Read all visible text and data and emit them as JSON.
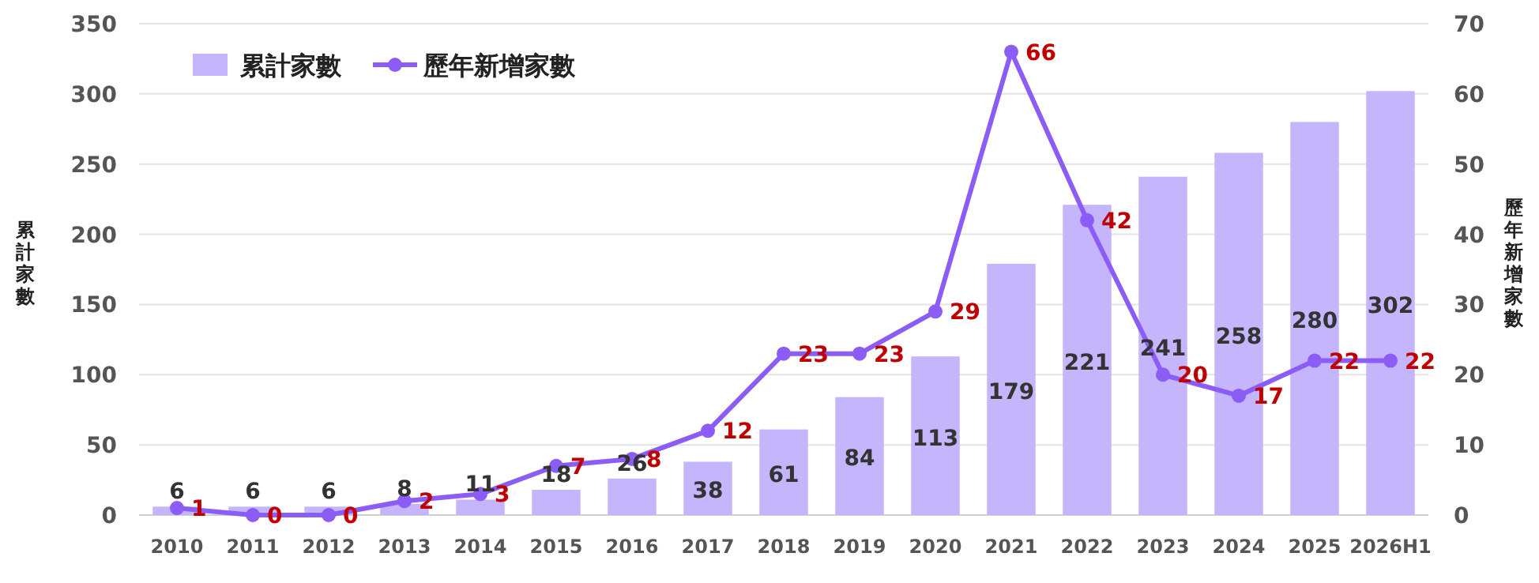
{
  "chart_data": {
    "type": "bar",
    "ylabel": "累計家數",
    "y2label": "歷年新增家數",
    "categories": [
      "2010",
      "2011",
      "2012",
      "2013",
      "2014",
      "2015",
      "2016",
      "2017",
      "2018",
      "2019",
      "2020",
      "2021",
      "2022",
      "2023",
      "2024",
      "2025",
      "2026H1"
    ],
    "series": [
      {
        "name": "累計家數",
        "color": "#c4b5fd",
        "values": [
          6,
          6,
          6,
          8,
          11,
          18,
          26,
          38,
          61,
          84,
          113,
          179,
          221,
          241,
          258,
          280,
          302
        ]
      },
      {
        "name": "歷年新增家數",
        "type": "line",
        "axis": "y2",
        "color": "#8b5cf6",
        "values": [
          1,
          0,
          0,
          2,
          3,
          7,
          8,
          12,
          23,
          23,
          29,
          66,
          42,
          20,
          17,
          22,
          22
        ]
      }
    ],
    "ylim": [
      0,
      350
    ],
    "yticks": [
      0,
      50,
      100,
      150,
      200,
      250,
      300,
      350
    ],
    "y2lim": [
      0,
      70
    ],
    "y2ticks": [
      0,
      10,
      20,
      30,
      40,
      50,
      60,
      70
    ],
    "data_labels": true,
    "grid": "y",
    "legend": "top left",
    "marker": "circle",
    "line_style": "solid"
  }
}
